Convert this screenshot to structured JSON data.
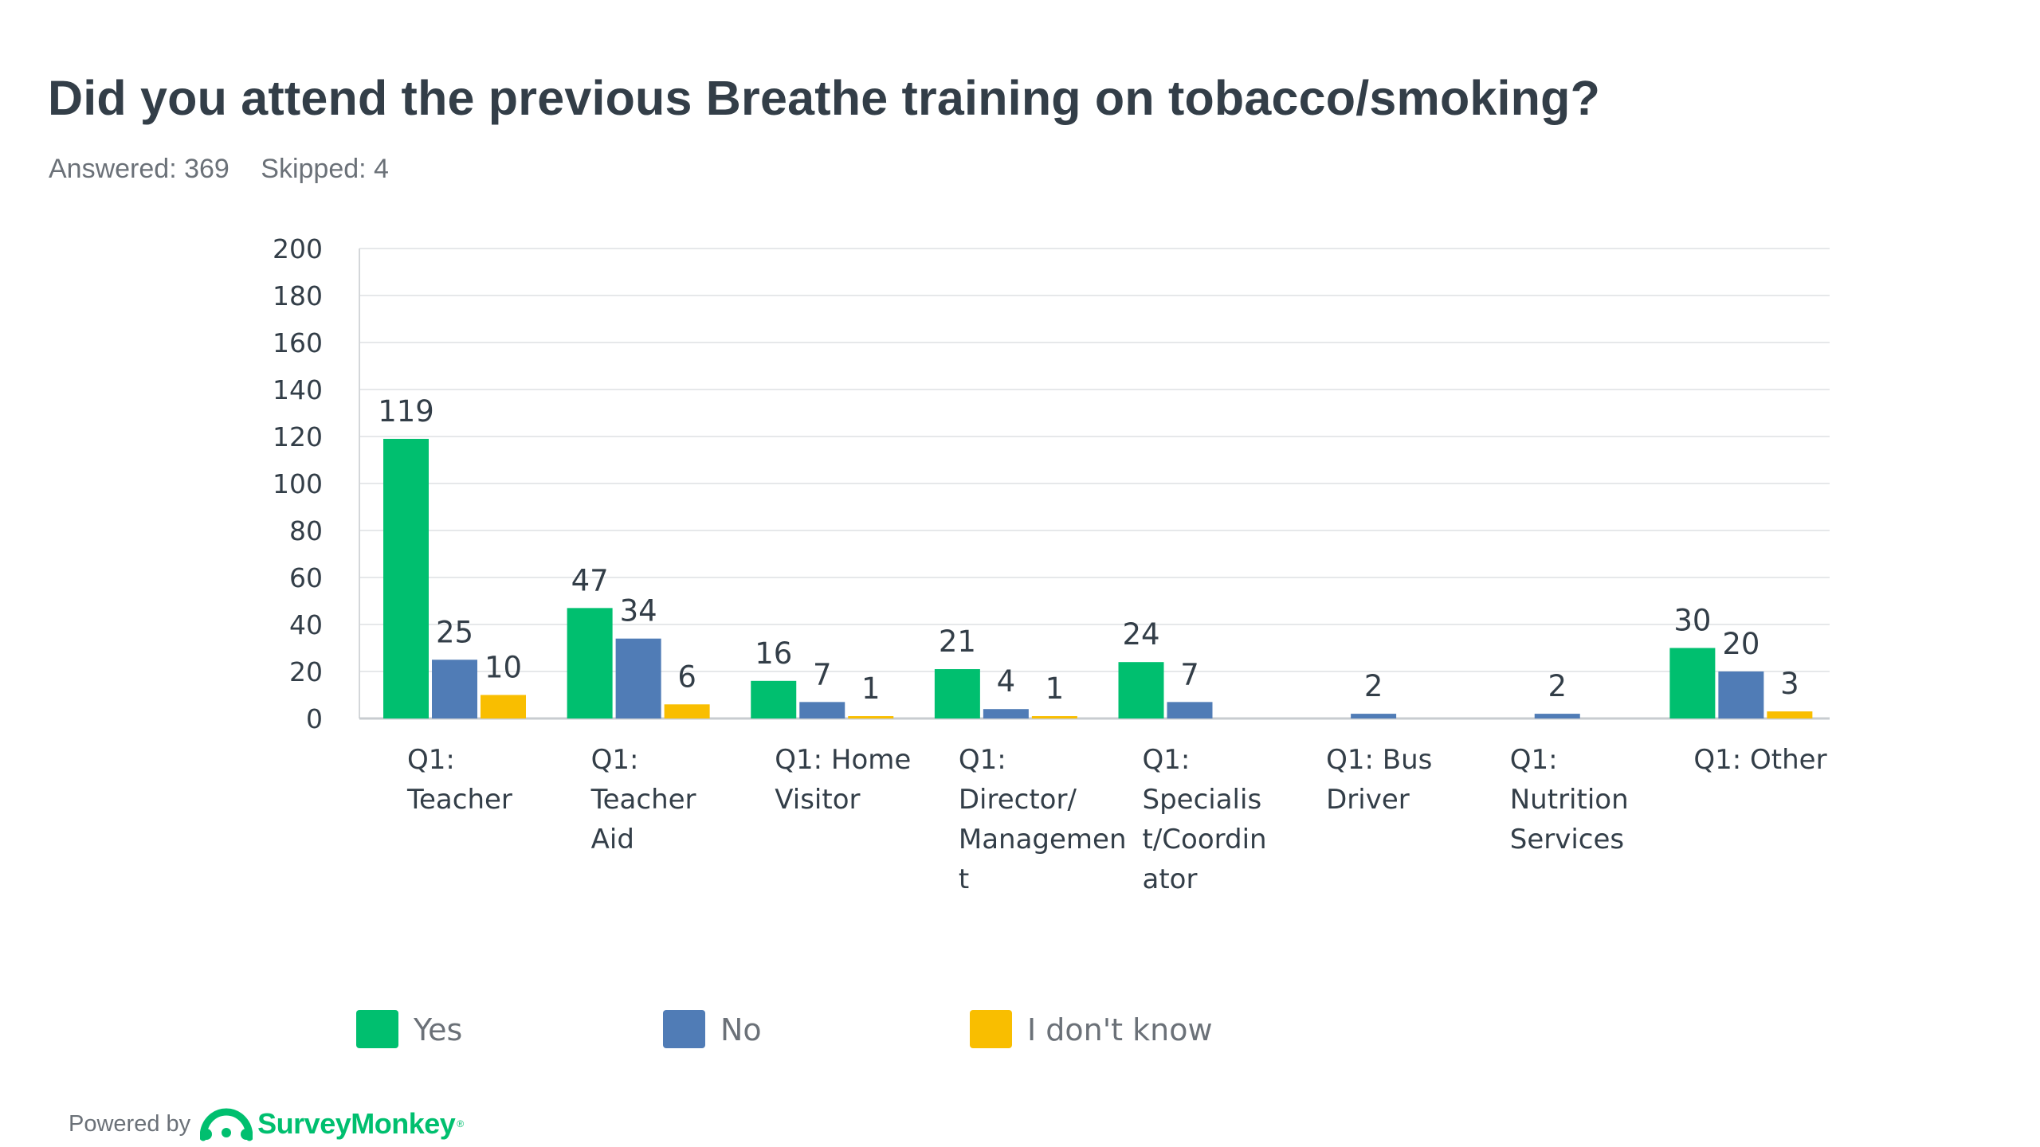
{
  "header": {
    "title": "Did you attend the previous Breathe training on tobacco/smoking?",
    "answered": "Answered: 369",
    "skipped": "Skipped: 4"
  },
  "footer": {
    "powered_by": "Powered by",
    "brand": "SurveyMonkey",
    "brand_icon": "surveymonkey-logo-icon"
  },
  "colors": {
    "yes": "#00bf6f",
    "no": "#507cb6",
    "dont_know": "#f9be00",
    "gridline": "#e6e8ea",
    "text": "#333e48"
  },
  "chart_data": {
    "type": "bar",
    "ylim": [
      0,
      200
    ],
    "yticks": [
      "0",
      "20",
      "40",
      "60",
      "80",
      "100",
      "120",
      "140",
      "160",
      "180",
      "200"
    ],
    "grid": true,
    "legend_position": "bottom",
    "categories": [
      [
        "Q1:",
        "Teacher"
      ],
      [
        "Q1:",
        "Teacher",
        "Aid"
      ],
      [
        "Q1: Home",
        "Visitor"
      ],
      [
        "Q1:",
        "Director/",
        "Managemen",
        "t"
      ],
      [
        "Q1:",
        "Specialis",
        "t/Coordin",
        "ator"
      ],
      [
        "Q1: Bus",
        "Driver"
      ],
      [
        "Q1:",
        "Nutrition",
        "Services"
      ],
      [
        "Q1: Other"
      ]
    ],
    "series": [
      {
        "name": "Yes",
        "color": "#00bf6f",
        "values": [
          119,
          47,
          16,
          21,
          24,
          0,
          0,
          30
        ],
        "labels": [
          "119",
          "47",
          "16",
          "21",
          "24",
          "",
          "",
          "30"
        ]
      },
      {
        "name": "No",
        "color": "#507cb6",
        "values": [
          25,
          34,
          7,
          4,
          7,
          2,
          2,
          20
        ],
        "labels": [
          "25",
          "34",
          "7",
          "4",
          "7",
          "2",
          "2",
          "20"
        ]
      },
      {
        "name": "I don't know",
        "color": "#f9be00",
        "values": [
          10,
          6,
          1,
          1,
          0,
          0,
          0,
          3
        ],
        "labels": [
          "10",
          "6",
          "1",
          "1",
          "",
          "",
          "",
          "3"
        ]
      }
    ]
  }
}
